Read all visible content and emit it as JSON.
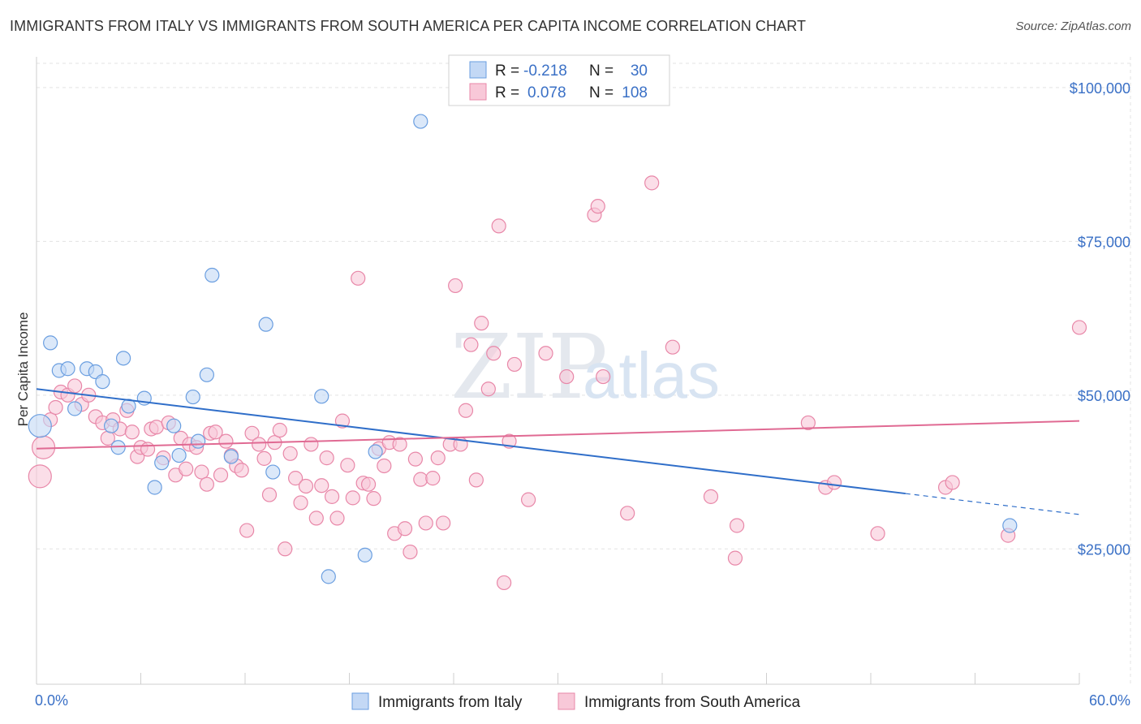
{
  "title": "IMMIGRANTS FROM ITALY VS IMMIGRANTS FROM SOUTH AMERICA PER CAPITA INCOME CORRELATION CHART",
  "source": "Source: ZipAtlas.com",
  "watermark": {
    "zip": "ZIP",
    "atlas": "atlas"
  },
  "colors": {
    "italy": "#6a9ee0",
    "italy_fill": "#c3d8f5",
    "sa": "#e887a8",
    "sa_fill": "#f8c8d8",
    "italy_line": "#2f6ec9",
    "sa_line": "#e06a93",
    "tick": "#3a70c6"
  },
  "legend": {
    "rows": [
      {
        "r_label": "R =",
        "r_value": "-0.218",
        "n_label": "N =",
        "n_value": "30"
      },
      {
        "r_label": "R =",
        "r_value": "0.078",
        "n_label": "N =",
        "n_value": "108"
      }
    ]
  },
  "bottom_legend": [
    "Immigrants from Italy",
    "Immigrants from South America"
  ],
  "chart_data": {
    "type": "scatter",
    "ylabel": "Per Capita Income",
    "xlim": [
      0,
      60
    ],
    "ylim": [
      3000,
      105000
    ],
    "x_tick_labels": [
      "0.0%",
      "60.0%"
    ],
    "y_ticks": [
      25000,
      50000,
      75000,
      100000
    ],
    "y_tick_labels": [
      "$25,000",
      "$50,000",
      "$75,000",
      "$100,000"
    ],
    "grid": true,
    "series": [
      {
        "name": "Immigrants from Italy",
        "trend": {
          "x0": 0,
          "y0": 51000,
          "x1": 50,
          "y1": 34000,
          "dash_to_x": 60,
          "dash_to_y": 30600
        },
        "points": [
          [
            0.2,
            45000
          ],
          [
            0.8,
            58500
          ],
          [
            1.3,
            54000
          ],
          [
            1.8,
            54300
          ],
          [
            2.2,
            47800
          ],
          [
            2.9,
            54300
          ],
          [
            3.4,
            53800
          ],
          [
            3.8,
            52200
          ],
          [
            4.3,
            45000
          ],
          [
            4.7,
            41500
          ],
          [
            5.0,
            56000
          ],
          [
            5.3,
            48200
          ],
          [
            6.2,
            49500
          ],
          [
            6.8,
            35000
          ],
          [
            7.2,
            39000
          ],
          [
            7.9,
            45000
          ],
          [
            8.2,
            40200
          ],
          [
            9.0,
            49700
          ],
          [
            9.3,
            42500
          ],
          [
            9.8,
            53300
          ],
          [
            10.1,
            69500
          ],
          [
            11.2,
            40000
          ],
          [
            13.2,
            61500
          ],
          [
            13.6,
            37500
          ],
          [
            16.4,
            49800
          ],
          [
            16.8,
            20500
          ],
          [
            18.9,
            24000
          ],
          [
            19.5,
            40800
          ],
          [
            22.1,
            94500
          ],
          [
            56.0,
            28800
          ]
        ]
      },
      {
        "name": "Immigrants from South America",
        "trend": {
          "x0": 0,
          "y0": 41300,
          "x1": 60,
          "y1": 45800
        },
        "points": [
          [
            0.2,
            36800
          ],
          [
            0.4,
            41500
          ],
          [
            0.8,
            46000
          ],
          [
            1.1,
            48000
          ],
          [
            1.4,
            50500
          ],
          [
            1.8,
            50000
          ],
          [
            2.2,
            51500
          ],
          [
            2.6,
            48500
          ],
          [
            3.0,
            50000
          ],
          [
            3.4,
            46500
          ],
          [
            3.8,
            45500
          ],
          [
            4.1,
            43000
          ],
          [
            4.4,
            46000
          ],
          [
            4.8,
            44500
          ],
          [
            5.2,
            47500
          ],
          [
            5.5,
            44000
          ],
          [
            5.8,
            40000
          ],
          [
            6.0,
            41500
          ],
          [
            6.4,
            41200
          ],
          [
            6.6,
            44500
          ],
          [
            6.9,
            44800
          ],
          [
            7.3,
            39800
          ],
          [
            7.6,
            45500
          ],
          [
            8.0,
            37000
          ],
          [
            8.3,
            43000
          ],
          [
            8.6,
            38000
          ],
          [
            8.8,
            42000
          ],
          [
            9.2,
            41500
          ],
          [
            9.5,
            37500
          ],
          [
            9.8,
            35500
          ],
          [
            10.0,
            43800
          ],
          [
            10.3,
            44000
          ],
          [
            10.6,
            37000
          ],
          [
            10.9,
            42500
          ],
          [
            11.2,
            40200
          ],
          [
            11.5,
            38500
          ],
          [
            11.8,
            37800
          ],
          [
            12.1,
            28000
          ],
          [
            12.4,
            43800
          ],
          [
            12.8,
            42000
          ],
          [
            13.1,
            39700
          ],
          [
            13.4,
            33800
          ],
          [
            13.7,
            42300
          ],
          [
            14.0,
            44300
          ],
          [
            14.3,
            25000
          ],
          [
            14.6,
            40500
          ],
          [
            14.9,
            36500
          ],
          [
            15.2,
            32500
          ],
          [
            15.5,
            35200
          ],
          [
            15.8,
            42000
          ],
          [
            16.1,
            30000
          ],
          [
            16.4,
            35300
          ],
          [
            16.7,
            39800
          ],
          [
            17.0,
            33500
          ],
          [
            17.3,
            30000
          ],
          [
            17.6,
            45800
          ],
          [
            17.9,
            38600
          ],
          [
            18.2,
            33300
          ],
          [
            18.5,
            69000
          ],
          [
            18.8,
            35700
          ],
          [
            19.1,
            35500
          ],
          [
            19.4,
            33200
          ],
          [
            19.7,
            41300
          ],
          [
            20.0,
            38500
          ],
          [
            20.3,
            42300
          ],
          [
            20.6,
            27500
          ],
          [
            20.9,
            42000
          ],
          [
            21.2,
            28300
          ],
          [
            21.5,
            24500
          ],
          [
            21.8,
            39600
          ],
          [
            22.1,
            36300
          ],
          [
            22.4,
            29200
          ],
          [
            22.8,
            36500
          ],
          [
            23.1,
            39800
          ],
          [
            23.4,
            29200
          ],
          [
            23.8,
            42000
          ],
          [
            24.1,
            67800
          ],
          [
            24.4,
            42000
          ],
          [
            24.7,
            47500
          ],
          [
            25.0,
            58200
          ],
          [
            25.3,
            36200
          ],
          [
            25.6,
            61700
          ],
          [
            26.0,
            51000
          ],
          [
            26.3,
            56800
          ],
          [
            26.6,
            77500
          ],
          [
            26.9,
            19500
          ],
          [
            27.2,
            42500
          ],
          [
            27.5,
            55000
          ],
          [
            28.3,
            33000
          ],
          [
            29.3,
            56800
          ],
          [
            30.5,
            53000
          ],
          [
            32.1,
            79300
          ],
          [
            32.3,
            80700
          ],
          [
            32.6,
            53000
          ],
          [
            34.0,
            30800
          ],
          [
            35.4,
            84500
          ],
          [
            36.6,
            57800
          ],
          [
            38.8,
            33500
          ],
          [
            40.2,
            23500
          ],
          [
            40.3,
            28800
          ],
          [
            44.4,
            45500
          ],
          [
            45.4,
            35000
          ],
          [
            45.9,
            35800
          ],
          [
            48.4,
            27500
          ],
          [
            52.3,
            35000
          ],
          [
            52.7,
            35800
          ],
          [
            55.9,
            27200
          ],
          [
            60.0,
            61000
          ]
        ]
      }
    ]
  }
}
